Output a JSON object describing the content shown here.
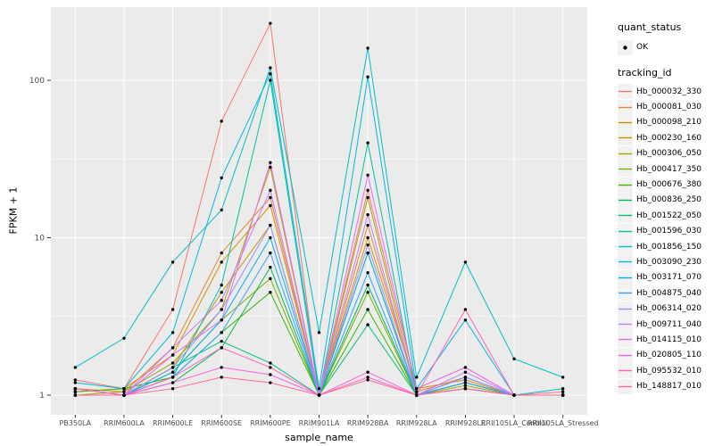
{
  "chart_data": {
    "type": "line",
    "title": "",
    "xlabel": "sample_name",
    "ylabel": "FPKM + 1",
    "y_scale": "log10",
    "y_ticks": [
      1,
      10,
      100
    ],
    "y_minor_ticks": [
      3.1623,
      31.6228
    ],
    "ylim": [
      0.75,
      300
    ],
    "grid": true,
    "legend_position": "right",
    "point_style": "small-black-filled-circle-on-every-datum",
    "categories": [
      "PB350LA",
      "RRIM600LA",
      "RRIM600LE",
      "RRIM600SE",
      "RRIM600PE",
      "RRIM901LA",
      "RRIM928BA",
      "RRIM928LA",
      "RRIM928LE",
      "RRII105LA_Control",
      "RRII105LA_Stressed"
    ],
    "series": [
      {
        "name": "Hb_000032_330",
        "color": "#F8766D",
        "values": [
          1.25,
          1.1,
          3.5,
          55,
          230,
          1.0,
          20,
          1.1,
          1.5,
          1.0,
          1.05
        ]
      },
      {
        "name": "Hb_000081_030",
        "color": "#EA8331",
        "values": [
          1.1,
          1.05,
          2.0,
          8,
          18,
          1.0,
          12,
          1.05,
          1.3,
          1.0,
          1.0
        ]
      },
      {
        "name": "Hb_000098_210",
        "color": "#D89000",
        "values": [
          1.05,
          1.1,
          1.8,
          7,
          16,
          1.0,
          10,
          1.1,
          1.25,
          1.0,
          1.0
        ]
      },
      {
        "name": "Hb_000230_160",
        "color": "#C09B00",
        "values": [
          1.1,
          1.0,
          1.5,
          4.5,
          12,
          1.0,
          8,
          1.0,
          1.2,
          1.0,
          1.0
        ]
      },
      {
        "name": "Hb_000306_050",
        "color": "#A3A500",
        "values": [
          1.0,
          1.05,
          1.6,
          3.5,
          28,
          1.0,
          18,
          1.0,
          1.15,
          1.0,
          1.0
        ]
      },
      {
        "name": "Hb_000417_350",
        "color": "#7CAE00",
        "values": [
          1.0,
          1.0,
          1.4,
          3.0,
          5.5,
          1.0,
          4.5,
          1.0,
          1.1,
          1.0,
          1.0
        ]
      },
      {
        "name": "Hb_000676_380",
        "color": "#39B600",
        "values": [
          1.05,
          1.1,
          1.3,
          2.5,
          4.5,
          1.0,
          3.5,
          1.0,
          1.2,
          1.0,
          1.0
        ]
      },
      {
        "name": "Hb_000836_250",
        "color": "#00BB4E",
        "values": [
          1.0,
          1.0,
          1.2,
          2.0,
          6.5,
          1.0,
          5.0,
          1.0,
          1.1,
          1.0,
          1.0
        ]
      },
      {
        "name": "Hb_001522_050",
        "color": "#00BF7D",
        "values": [
          1.0,
          1.0,
          1.5,
          2.2,
          1.6,
          1.0,
          2.8,
          1.0,
          1.1,
          1.0,
          1.0
        ]
      },
      {
        "name": "Hb_001596_030",
        "color": "#00C1A3",
        "values": [
          1.1,
          1.0,
          1.3,
          5.0,
          100,
          1.0,
          40,
          1.0,
          1.2,
          1.0,
          1.0
        ]
      },
      {
        "name": "Hb_001856_150",
        "color": "#00BFC4",
        "values": [
          1.5,
          2.3,
          7.0,
          15,
          120,
          2.5,
          160,
          1.3,
          7.0,
          1.7,
          1.3
        ]
      },
      {
        "name": "Hb_003090_230",
        "color": "#00BAE0",
        "values": [
          1.2,
          1.1,
          2.5,
          24,
          110,
          1.1,
          105,
          1.1,
          3.0,
          1.0,
          1.1
        ]
      },
      {
        "name": "Hb_003171_070",
        "color": "#00B0F6",
        "values": [
          1.0,
          1.0,
          1.4,
          3.0,
          10,
          1.0,
          8.0,
          1.0,
          1.3,
          1.0,
          1.0
        ]
      },
      {
        "name": "Hb_004875_040",
        "color": "#35A2FF",
        "values": [
          1.0,
          1.0,
          1.3,
          2.5,
          8.0,
          1.0,
          6.0,
          1.0,
          1.2,
          1.0,
          1.0
        ]
      },
      {
        "name": "Hb_006314_020",
        "color": "#9590FF",
        "values": [
          1.0,
          1.0,
          1.5,
          3.5,
          12,
          1.0,
          9.0,
          1.0,
          1.3,
          1.0,
          1.0
        ]
      },
      {
        "name": "Hb_009711_040",
        "color": "#C77CFF",
        "values": [
          1.1,
          1.0,
          2.0,
          4.0,
          20,
          1.0,
          14,
          1.0,
          1.4,
          1.0,
          1.0
        ]
      },
      {
        "name": "Hb_014115_010",
        "color": "#E76BF3",
        "values": [
          1.0,
          1.0,
          1.8,
          3.0,
          30,
          1.0,
          25,
          1.1,
          1.5,
          1.0,
          1.0
        ]
      },
      {
        "name": "Hb_020805_110",
        "color": "#FA62DB",
        "values": [
          1.0,
          1.0,
          1.2,
          1.5,
          1.35,
          1.0,
          1.4,
          1.0,
          1.1,
          1.0,
          1.0
        ]
      },
      {
        "name": "Hb_095532_010",
        "color": "#FF62BC",
        "values": [
          1.1,
          1.0,
          1.3,
          2.0,
          1.5,
          1.0,
          1.3,
          1.0,
          3.5,
          1.0,
          1.0
        ]
      },
      {
        "name": "Hb_148817_010",
        "color": "#FF6A98",
        "values": [
          1.0,
          1.0,
          1.1,
          1.3,
          1.2,
          1.0,
          1.25,
          1.0,
          1.1,
          1.0,
          1.0
        ]
      }
    ],
    "legend": {
      "quant_status_title": "quant_status",
      "quant_status_items": [
        "OK"
      ],
      "tracking_id_title": "tracking_id"
    }
  },
  "style": {
    "panel_bg": "#EBEBEB",
    "grid_color": "#FFFFFF",
    "tick_color": "#333333",
    "tick_label_color": "#4D4D4D",
    "point_color": "#000000"
  }
}
